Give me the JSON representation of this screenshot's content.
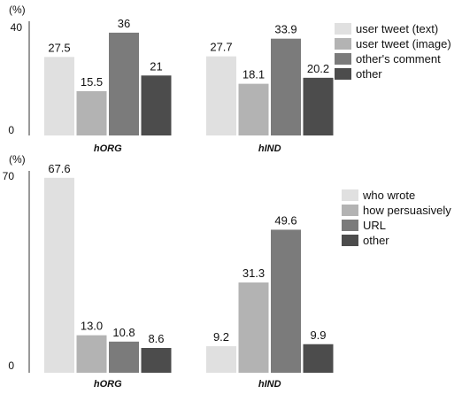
{
  "chart_data": [
    {
      "type": "bar",
      "categories": [
        "hORG",
        "hIND"
      ],
      "series": [
        {
          "name": "user tweet (text)",
          "values": [
            27.5,
            27.7
          ]
        },
        {
          "name": "user tweet (image)",
          "values": [
            15.5,
            18.1
          ]
        },
        {
          "name": "other's comment",
          "values": [
            36,
            33.9
          ]
        },
        {
          "name": "other",
          "values": [
            21,
            20.2
          ]
        }
      ],
      "value_labels": [
        [
          "27.5",
          "15.5",
          "36",
          "21"
        ],
        [
          "27.7",
          "18.1",
          "33.9",
          "20.2"
        ]
      ],
      "unit_label": "(%)",
      "ylim": [
        0,
        40
      ],
      "yticks": [
        "0",
        "40"
      ],
      "colors": [
        "#e0e0e0",
        "#b3b3b3",
        "#7b7b7b",
        "#4c4c4c"
      ],
      "grid": false,
      "legend": "right"
    },
    {
      "type": "bar",
      "categories": [
        "hORG",
        "hIND"
      ],
      "series": [
        {
          "name": "who wrote",
          "values": [
            67.6,
            9.2
          ]
        },
        {
          "name": "how persuasively",
          "values": [
            13.0,
            31.3
          ]
        },
        {
          "name": "URL",
          "values": [
            10.8,
            49.6
          ]
        },
        {
          "name": "other",
          "values": [
            8.6,
            9.9
          ]
        }
      ],
      "value_labels": [
        [
          "67.6",
          "13.0",
          "10.8",
          "8.6"
        ],
        [
          "9.2",
          "31.3",
          "49.6",
          "9.9"
        ]
      ],
      "unit_label": "(%)",
      "ylim": [
        0,
        70
      ],
      "yticks": [
        "0",
        "70"
      ],
      "colors": [
        "#e0e0e0",
        "#b3b3b3",
        "#7b7b7b",
        "#4c4c4c"
      ],
      "grid": false,
      "legend": "right"
    }
  ]
}
